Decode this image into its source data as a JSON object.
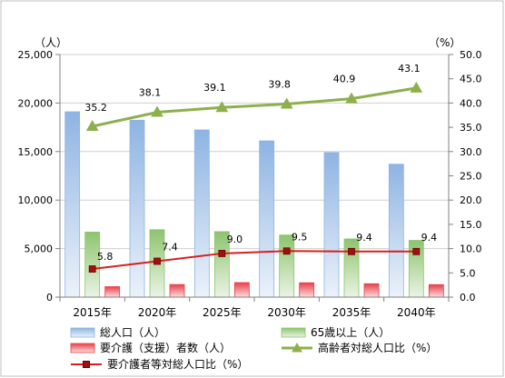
{
  "chart_data": {
    "type": "bar",
    "categories": [
      "2015年",
      "2020年",
      "2025年",
      "2030年",
      "2035年",
      "2040年"
    ],
    "y_left": {
      "unit_label": "（人）",
      "min": 0,
      "max": 25000,
      "step": 5000,
      "ticks": [
        "0",
        "5,000",
        "10,000",
        "15,000",
        "20,000",
        "25,000"
      ]
    },
    "y_right": {
      "unit_label": "（%）",
      "min": 0,
      "max": 50,
      "step": 5,
      "ticks": [
        "0.0",
        "5.0",
        "10.0",
        "15.0",
        "20.0",
        "25.0",
        "30.0",
        "35.0",
        "40.0",
        "45.0",
        "50.0"
      ]
    },
    "bar_series": [
      {
        "name": "総人口（人）",
        "values": [
          19100,
          18230,
          17230,
          16100,
          14900,
          13700
        ],
        "color": "#8eb4e3"
      },
      {
        "name": "65歳以上（人）",
        "values": [
          6700,
          6950,
          6750,
          6400,
          6000,
          5850
        ],
        "color": "#8dc46e"
      },
      {
        "name": "要介護（支援）者数（人）",
        "values": [
          1080,
          1300,
          1500,
          1480,
          1380,
          1290
        ],
        "color": "#e8404a"
      }
    ],
    "line_series": [
      {
        "name": "高齢者対総人口比（%）",
        "axis": "right",
        "color": "#8db04d",
        "marker": "triangle",
        "values": [
          35.2,
          38.1,
          39.1,
          39.8,
          40.9,
          43.1
        ],
        "labels": [
          "35.2",
          "38.1",
          "39.1",
          "39.8",
          "40.9",
          "43.1"
        ]
      },
      {
        "name": "要介護者等対総人口比（%）",
        "axis": "right",
        "color": "#d81e1e",
        "marker": "square",
        "values": [
          5.8,
          7.4,
          9.0,
          9.5,
          9.4,
          9.4
        ],
        "labels": [
          "5.8",
          "7.4",
          "9.0",
          "9.5",
          "9.4",
          "9.4"
        ]
      }
    ],
    "grid": true,
    "legend": {
      "position": "bottom"
    }
  }
}
